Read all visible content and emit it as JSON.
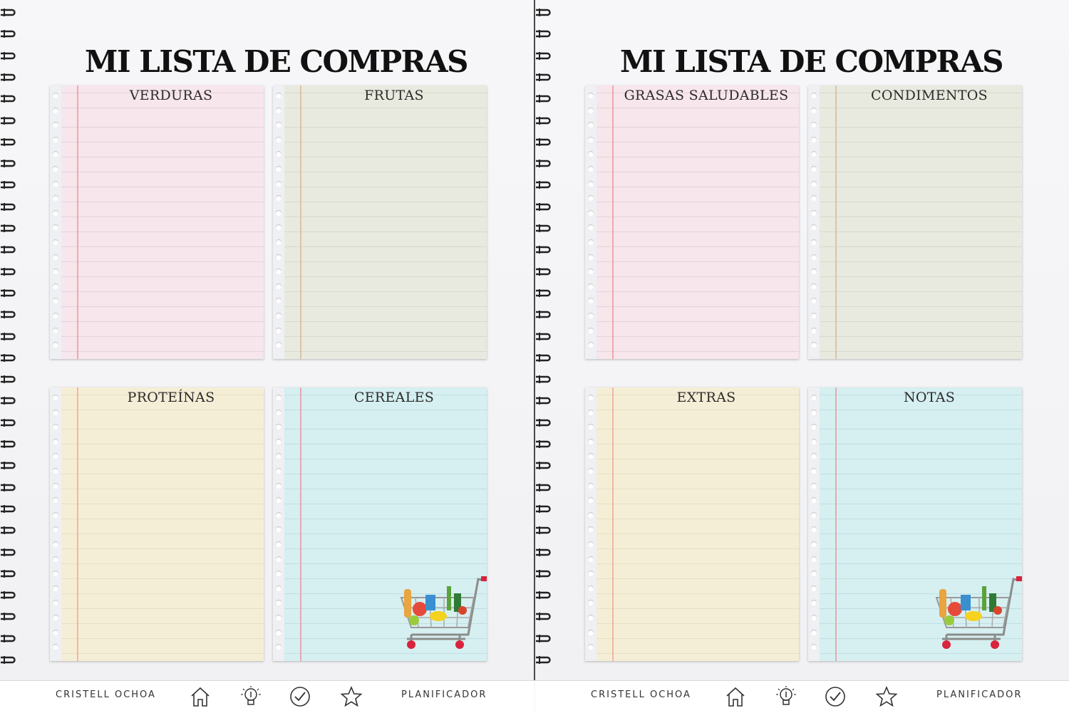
{
  "pages": [
    {
      "title": "MI LISTA DE COMPRAS",
      "lists": [
        {
          "header": "VERDURAS",
          "color": "pink"
        },
        {
          "header": "FRUTAS",
          "color": "green"
        },
        {
          "header": "PROTEÍNAS",
          "color": "yellow"
        },
        {
          "header": "CEREALES",
          "color": "blue"
        }
      ],
      "footer": {
        "brand": "CRISTELL OCHOA",
        "planner": "PLANIFICADOR"
      }
    },
    {
      "title": "MI LISTA DE COMPRAS",
      "lists": [
        {
          "header": "GRASAS SALUDABLES",
          "color": "pink"
        },
        {
          "header": "CONDIMENTOS",
          "color": "green"
        },
        {
          "header": "EXTRAS",
          "color": "yellow"
        },
        {
          "header": "NOTAS",
          "color": "blue"
        }
      ],
      "footer": {
        "brand": "CRISTELL OCHOA",
        "planner": "PLANIFICADOR"
      }
    }
  ],
  "footer_icons": [
    "home-icon",
    "lightbulb-icon",
    "checkmark-icon",
    "star-icon"
  ],
  "colors": {
    "pink": "#f7e6ec",
    "green": "#e9eadf",
    "yellow": "#f5eed6",
    "blue": "#d6eff1",
    "spiral": "#222222"
  }
}
